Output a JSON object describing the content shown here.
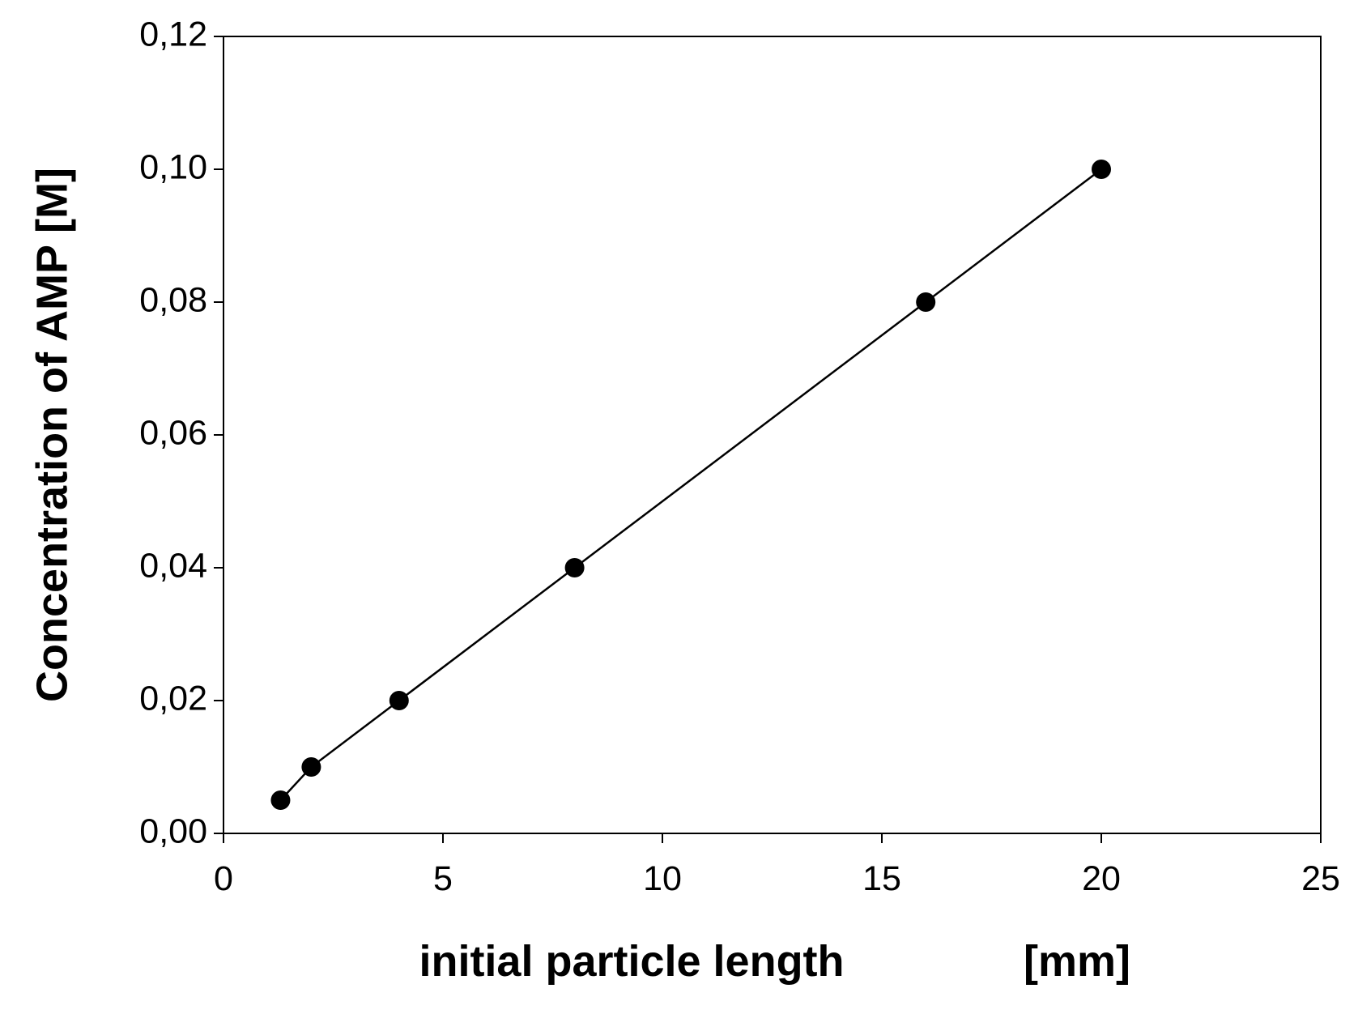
{
  "chart_data": {
    "type": "scatter",
    "xlabel": "initial particle length",
    "xlabel_unit": "[mm]",
    "ylabel": "Concentration of AMP [M]",
    "x": [
      1.3,
      2,
      4,
      8,
      16,
      20
    ],
    "series": [
      {
        "color": "#000000",
        "values": [
          0.005,
          0.01,
          0.02,
          0.04,
          0.08,
          0.1
        ]
      }
    ],
    "connect_points": true,
    "xlim": [
      0,
      25
    ],
    "ylim": [
      0,
      0.12
    ],
    "xticks": [
      0,
      5,
      10,
      15,
      20,
      25
    ],
    "yticks": [
      {
        "value": 0,
        "label": "0,00"
      },
      {
        "value": 0.02,
        "label": "0,02"
      },
      {
        "value": 0.04,
        "label": "0,04"
      },
      {
        "value": 0.06,
        "label": "0,06"
      },
      {
        "value": 0.08,
        "label": "0,08"
      },
      {
        "value": 0.1,
        "label": "0,10"
      },
      {
        "value": 0.12,
        "label": "0,12"
      }
    ],
    "grid": false
  }
}
